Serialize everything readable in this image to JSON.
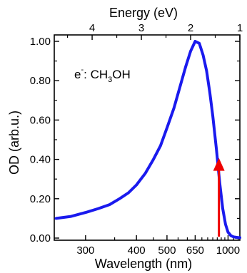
{
  "chart_data": {
    "type": "line",
    "xlabel": "Wavelength (nm)",
    "top_xlabel": "Energy (eV)",
    "ylabel": "OD (arb.u.)",
    "x_scale": "reciprocal",
    "xlim": [
      260,
      1240
    ],
    "ylim": [
      0,
      1.02
    ],
    "grid": false,
    "y_ticks": [
      0.0,
      0.2,
      0.4,
      0.6,
      0.8,
      1.0
    ],
    "y_tick_labels": [
      "0.00",
      "0.20",
      "0.40",
      "0.60",
      "0.80",
      "1.00"
    ],
    "x_ticks": [
      300,
      400,
      500,
      650,
      1000
    ],
    "x_tick_labels": [
      "300",
      "400",
      "500",
      "650",
      "1000"
    ],
    "top_ticks_eV": [
      4,
      3,
      2,
      1
    ],
    "top_tick_labels": [
      "4",
      "3",
      "2",
      "1"
    ],
    "annotation": {
      "prefix": "e",
      "superscript": "-",
      "colon": ": ",
      "formula_part1": "CH",
      "formula_sub": "3",
      "formula_part2": "OH"
    },
    "series": [
      {
        "color": "#1a1aee",
        "x": [
          262,
          280,
          300,
          320,
          340,
          360,
          380,
          400,
          425,
          450,
          475,
          500,
          530,
          560,
          590,
          620,
          650,
          680,
          710,
          740,
          770,
          800,
          840,
          880,
          920,
          960,
          1000,
          1050,
          1100,
          1150,
          1200,
          1240
        ],
        "y": [
          0.1,
          0.11,
          0.13,
          0.15,
          0.17,
          0.2,
          0.23,
          0.27,
          0.33,
          0.4,
          0.47,
          0.56,
          0.66,
          0.77,
          0.87,
          0.95,
          1.0,
          0.99,
          0.93,
          0.85,
          0.74,
          0.62,
          0.45,
          0.28,
          0.15,
          0.07,
          0.03,
          0.012,
          0.006,
          0.004,
          0.003,
          0.002
        ]
      }
    ],
    "arrow": {
      "x": 870,
      "y_from": 0.0,
      "y_to": 0.4,
      "color": "#ee0000"
    }
  }
}
